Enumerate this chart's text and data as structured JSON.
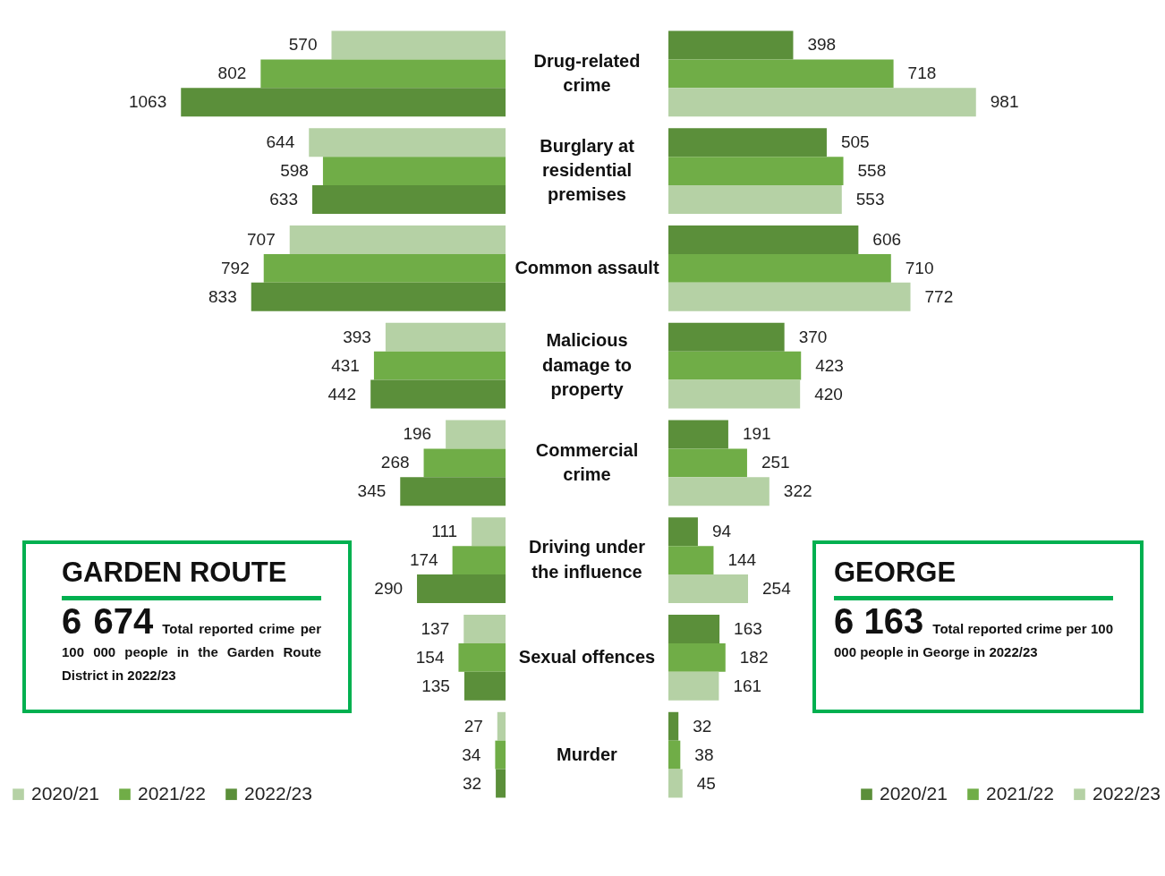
{
  "chart_data": [
    {
      "type": "bar",
      "orientation": "horizontal",
      "categories": [
        "Drug-related crime",
        "Burglary at residential premises",
        "Common assault",
        "Malicious damage to property",
        "Commercial crime",
        "Driving under the influence",
        "Sexual offences",
        "Murder"
      ],
      "data_labels": true,
      "legend": "bottom left",
      "tick_labels": "y",
      "series": [
        {
          "name": "2020/21",
          "color": "#b5d1a5",
          "values": [
            570,
            644,
            707,
            393,
            196,
            111,
            137,
            27
          ]
        },
        {
          "name": "2021/22",
          "color": "#70ad47",
          "values": [
            802,
            598,
            792,
            431,
            268,
            174,
            154,
            34
          ]
        },
        {
          "name": "2022/23",
          "color": "#5b8f3a",
          "values": [
            1063,
            633,
            833,
            442,
            345,
            290,
            135,
            32
          ]
        }
      ],
      "annotations": [
        "GARDEN ROUTE",
        "6 674",
        "Total reported crime per 100 000 people in the Garden Route District in 2022/23"
      ]
    },
    {
      "type": "bar",
      "orientation": "horizontal",
      "categories": [
        null,
        null,
        null,
        null,
        null,
        null,
        null,
        null
      ],
      "data_labels": true,
      "legend": "bottom right",
      "tick_labels": false,
      "series": [
        {
          "name": "2020/21",
          "color": "#5b8f3a",
          "values": [
            398,
            505,
            606,
            370,
            191,
            94,
            163,
            32
          ]
        },
        {
          "name": "2021/22",
          "color": "#70ad47",
          "values": [
            718,
            558,
            710,
            423,
            251,
            144,
            182,
            38
          ]
        },
        {
          "name": "2022/23",
          "color": "#b5d1a5",
          "values": [
            981,
            553,
            772,
            420,
            322,
            254,
            161,
            45
          ]
        }
      ],
      "annotations": [
        "GEORGE",
        "6 163",
        "Total reported crime per 100 000 people in George in 2022/23"
      ]
    }
  ]
}
